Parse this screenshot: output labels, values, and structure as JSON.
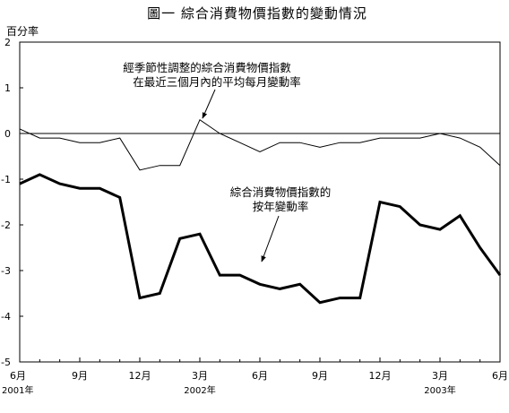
{
  "chart_data": {
    "type": "line",
    "title": "圖一  綜合消費物價指數的變動情況",
    "ylabel": "百分率",
    "xlabel": "",
    "ylim": [
      -5,
      2
    ],
    "yticks": [
      "2",
      "1",
      "0",
      "-1",
      "-2",
      "-3",
      "-4",
      "-5"
    ],
    "grid": false,
    "zero_line": true,
    "x_tick_labels": [
      "6月",
      "9月",
      "12月",
      "3月",
      "6月",
      "9月",
      "12月",
      "3月",
      "6月"
    ],
    "year_labels": [
      "2001年",
      "2002年",
      "2003年"
    ],
    "x": [
      "2001-06",
      "2001-07",
      "2001-08",
      "2001-09",
      "2001-10",
      "2001-11",
      "2001-12",
      "2002-01",
      "2002-02",
      "2002-03",
      "2002-04",
      "2002-05",
      "2002-06",
      "2002-07",
      "2002-08",
      "2002-09",
      "2002-10",
      "2002-11",
      "2002-12",
      "2003-01",
      "2003-02",
      "2003-03",
      "2003-04",
      "2003-05",
      "2003-06"
    ],
    "series": [
      {
        "name": "經季節性調整的綜合消費物價指數在最近三個月內的平均每月變動率",
        "annotation": [
          "經季節性調整的綜合消費物價指數",
          "在最近三個月內的平均每月變動率"
        ],
        "style": "thin",
        "values": [
          0.1,
          -0.1,
          -0.1,
          -0.2,
          -0.2,
          -0.1,
          -0.8,
          -0.7,
          -0.7,
          0.3,
          0.0,
          -0.2,
          -0.4,
          -0.2,
          -0.2,
          -0.3,
          -0.2,
          -0.2,
          -0.1,
          -0.1,
          -0.1,
          0.0,
          -0.1,
          -0.3,
          -0.7
        ]
      },
      {
        "name": "綜合消費物價指數的按年變動率",
        "annotation": [
          "綜合消費物價指數的",
          "按年變動率"
        ],
        "style": "thick",
        "values": [
          -1.1,
          -0.9,
          -1.1,
          -1.2,
          -1.2,
          -1.4,
          -3.6,
          -3.5,
          -2.3,
          -2.2,
          -3.1,
          -3.1,
          -3.3,
          -3.4,
          -3.3,
          -3.7,
          -3.6,
          -3.6,
          -1.5,
          -1.6,
          -2.0,
          -2.1,
          -1.8,
          -2.5,
          -3.1
        ]
      }
    ]
  }
}
